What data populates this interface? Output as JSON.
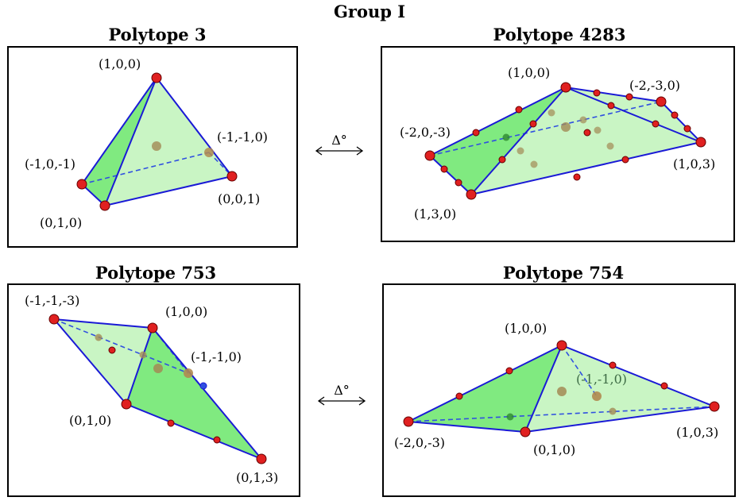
{
  "group_title": "Group I",
  "duality_symbol": "Δ°",
  "colors": {
    "edge": "#1a1ad6",
    "face_light": "#c9f5c4",
    "face_dark": "#80ea80",
    "vertex": "#e02020",
    "interior_point": "#a38a55"
  },
  "panels": [
    {
      "title": "Polytope 3",
      "vertex_labels": [
        "(1,0,0)",
        "(-1,-1,0)",
        "(-1,0,-1)",
        "(0,0,1)",
        "(0,1,0)"
      ]
    },
    {
      "title": "Polytope 4283",
      "vertex_labels": [
        "(1,0,0)",
        "(-2,-3,0)",
        "(-2,0,-3)",
        "(1,0,3)",
        "(1,3,0)"
      ]
    },
    {
      "title": "Polytope 753",
      "vertex_labels": [
        "(-1,-1,-3)",
        "(1,0,0)",
        "(-1,-1,0)",
        "(0,1,0)",
        "(0,1,3)"
      ]
    },
    {
      "title": "Polytope 754",
      "vertex_labels": [
        "(1,0,0)",
        "(-1,-1,0)",
        "(-2,0,-3)",
        "(1,0,3)",
        "(0,1,0)"
      ]
    }
  ]
}
